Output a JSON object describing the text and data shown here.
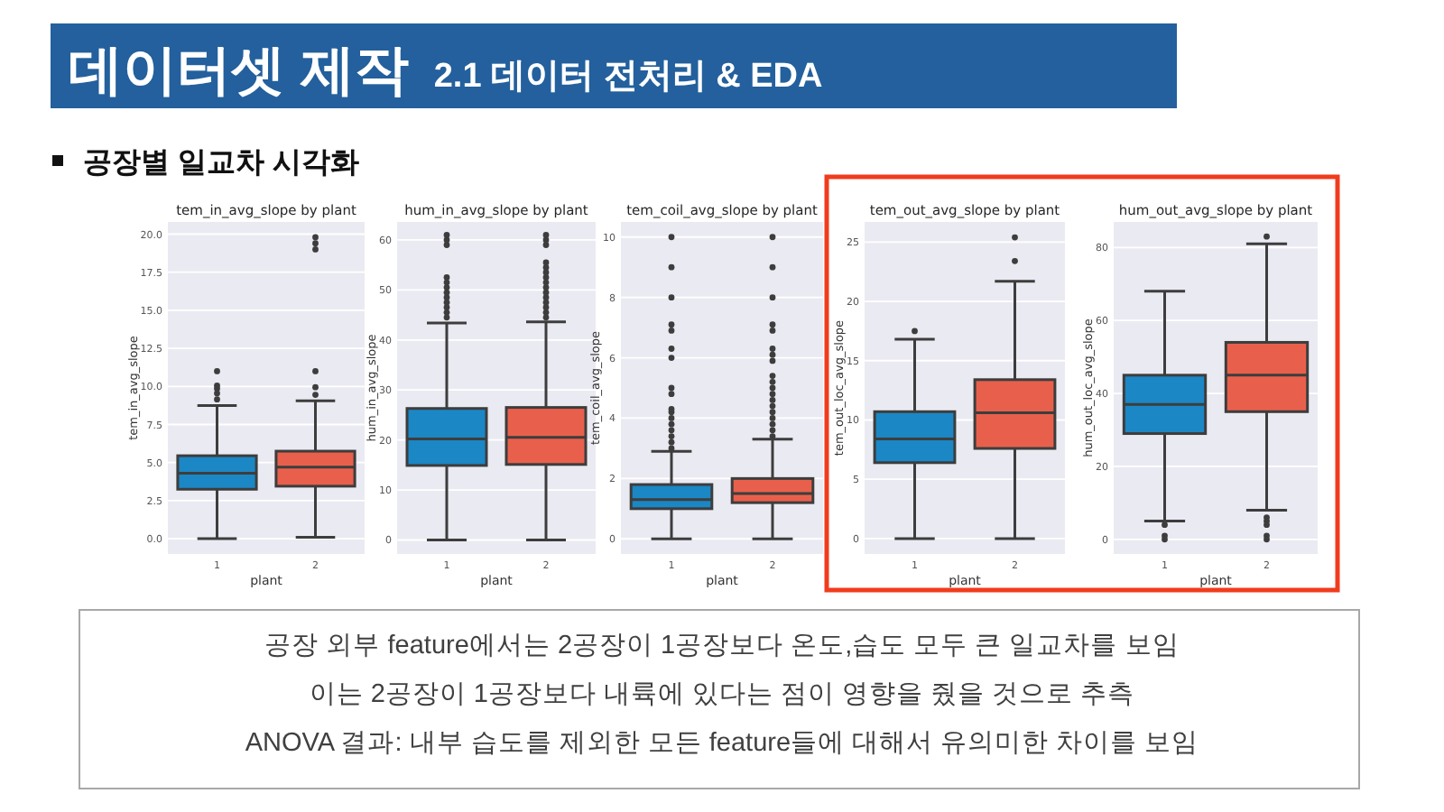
{
  "chart_data": [
    {
      "type": "other",
      "title": "데이터셋 제작",
      "subtitle": "2.1 데이터 전처리 & EDA",
      "annotations": [
        "공장별 일교차 시각화"
      ]
    },
    {
      "type": "box",
      "title": "tem_in_avg_slope by plant",
      "xlabel": "plant",
      "ylabel": "tem_in_avg_slope",
      "categories": [
        "1",
        "2"
      ],
      "colors": [
        "#1b87c5",
        "#e8604c"
      ],
      "boxes": [
        {
          "low": 0,
          "q1": 3.25,
          "median": 4.3,
          "q3": 5.45,
          "high": 8.75,
          "outliers": [
            9.15,
            9.55,
            9.85,
            10.05,
            11.0
          ]
        },
        {
          "low": 0.1,
          "q1": 3.45,
          "median": 4.7,
          "q3": 5.75,
          "high": 9.05,
          "outliers": [
            9.45,
            9.95,
            11.0,
            19.0,
            19.4,
            19.8
          ]
        }
      ],
      "ylim": [
        -1.0,
        20.8
      ],
      "yticks": [
        {
          "value": 0,
          "label": "0.0"
        },
        2.5,
        {
          "value": 5,
          "label": "5.0"
        },
        7.5,
        {
          "value": 10,
          "label": "10.0"
        },
        12.5,
        {
          "value": 15,
          "label": "15.0"
        },
        17.5,
        {
          "value": 20,
          "label": "20.0"
        }
      ],
      "grid": "y"
    },
    {
      "type": "box",
      "title": "hum_in_avg_slope by plant",
      "xlabel": "plant",
      "ylabel": "hum_in_avg_slope",
      "categories": [
        "1",
        "2"
      ],
      "colors": [
        "#1b87c5",
        "#e8604c"
      ],
      "boxes": [
        {
          "low": 0,
          "q1": 14.9,
          "median": 20.2,
          "q3": 26.3,
          "high": 43.4,
          "outliers": [
            44.5,
            45.5,
            46.5,
            47.5,
            48.5,
            49.5,
            50.5,
            51.5,
            52.5,
            59,
            60,
            61
          ]
        },
        {
          "low": 0,
          "q1": 15.1,
          "median": 20.5,
          "q3": 26.5,
          "high": 43.6,
          "outliers": [
            44.5,
            45.5,
            46.5,
            47.5,
            48.5,
            49.5,
            50.5,
            51.5,
            52.5,
            53.5,
            54.5,
            55.5,
            59,
            60,
            61
          ]
        }
      ],
      "ylim": [
        -2.8,
        63.6
      ],
      "yticks": [
        0,
        10,
        20,
        30,
        40,
        50,
        60
      ],
      "grid": "y"
    },
    {
      "type": "box",
      "title": "tem_coil_avg_slope by plant",
      "xlabel": "plant",
      "ylabel": "tem_coil_avg_slope",
      "categories": [
        "1",
        "2"
      ],
      "colors": [
        "#1b87c5",
        "#e8604c"
      ],
      "boxes": [
        {
          "low": 0,
          "q1": 1.0,
          "median": 1.3,
          "q3": 1.8,
          "high": 2.9,
          "outliers": [
            3.0,
            3.2,
            3.4,
            3.6,
            3.8,
            4.0,
            4.2,
            4.3,
            4.8,
            5.0,
            6.0,
            6.3,
            6.9,
            7.1,
            8.0,
            9.0,
            10.0
          ]
        },
        {
          "low": 0,
          "q1": 1.2,
          "median": 1.5,
          "q3": 2.0,
          "high": 3.3,
          "outliers": [
            3.4,
            3.6,
            3.8,
            4.0,
            4.2,
            4.4,
            4.6,
            4.8,
            5.0,
            5.2,
            5.4,
            5.9,
            6.1,
            6.3,
            6.9,
            7.1,
            8.0,
            9.0,
            10.0
          ]
        }
      ],
      "ylim": [
        -0.5,
        10.5
      ],
      "yticks": [
        0,
        2,
        4,
        6,
        8,
        10
      ],
      "grid": "y"
    },
    {
      "type": "box",
      "title": "tem_out_avg_slope by plant",
      "xlabel": "plant",
      "ylabel": "tem_out_loc_avg_slope",
      "categories": [
        "1",
        "2"
      ],
      "colors": [
        "#1b87c5",
        "#e8604c"
      ],
      "boxes": [
        {
          "low": 0,
          "q1": 6.4,
          "median": 8.4,
          "q3": 10.7,
          "high": 16.8,
          "outliers": [
            17.5
          ]
        },
        {
          "low": 0,
          "q1": 7.6,
          "median": 10.6,
          "q3": 13.4,
          "high": 21.7,
          "outliers": [
            23.4,
            25.4
          ]
        }
      ],
      "ylim": [
        -1.3,
        26.7
      ],
      "yticks": [
        0,
        5,
        10,
        15,
        20,
        25
      ],
      "grid": "y"
    },
    {
      "type": "box",
      "title": "hum_out_avg_slope by plant",
      "xlabel": "plant",
      "ylabel": "hum_out_loc_avg_slope",
      "categories": [
        "1",
        "2"
      ],
      "colors": [
        "#1b87c5",
        "#e8604c"
      ],
      "boxes": [
        {
          "low": 5,
          "q1": 29,
          "median": 37,
          "q3": 45,
          "high": 68,
          "outliers": [
            4,
            1,
            0
          ]
        },
        {
          "low": 8,
          "q1": 35,
          "median": 45,
          "q3": 54,
          "high": 81,
          "outliers": [
            83,
            6,
            5,
            4,
            1,
            0
          ]
        }
      ],
      "ylim": [
        -4,
        87
      ],
      "yticks": [
        0,
        20,
        40,
        60,
        80
      ],
      "grid": "y"
    },
    {
      "type": "other",
      "annotations": [
        "공장 외부 feature에서는 2공장이 1공장보다 온도,습도 모두 큰 일교차를 보임",
        "이는 2공장이 1공장보다 내륙에 있다는 점이 영향을 줬을 것으로 추측",
        "ANOVA 결과: 내부 습도를 제외한 모든 feature들에 대해서 유의미한 차이를 보임"
      ]
    }
  ]
}
